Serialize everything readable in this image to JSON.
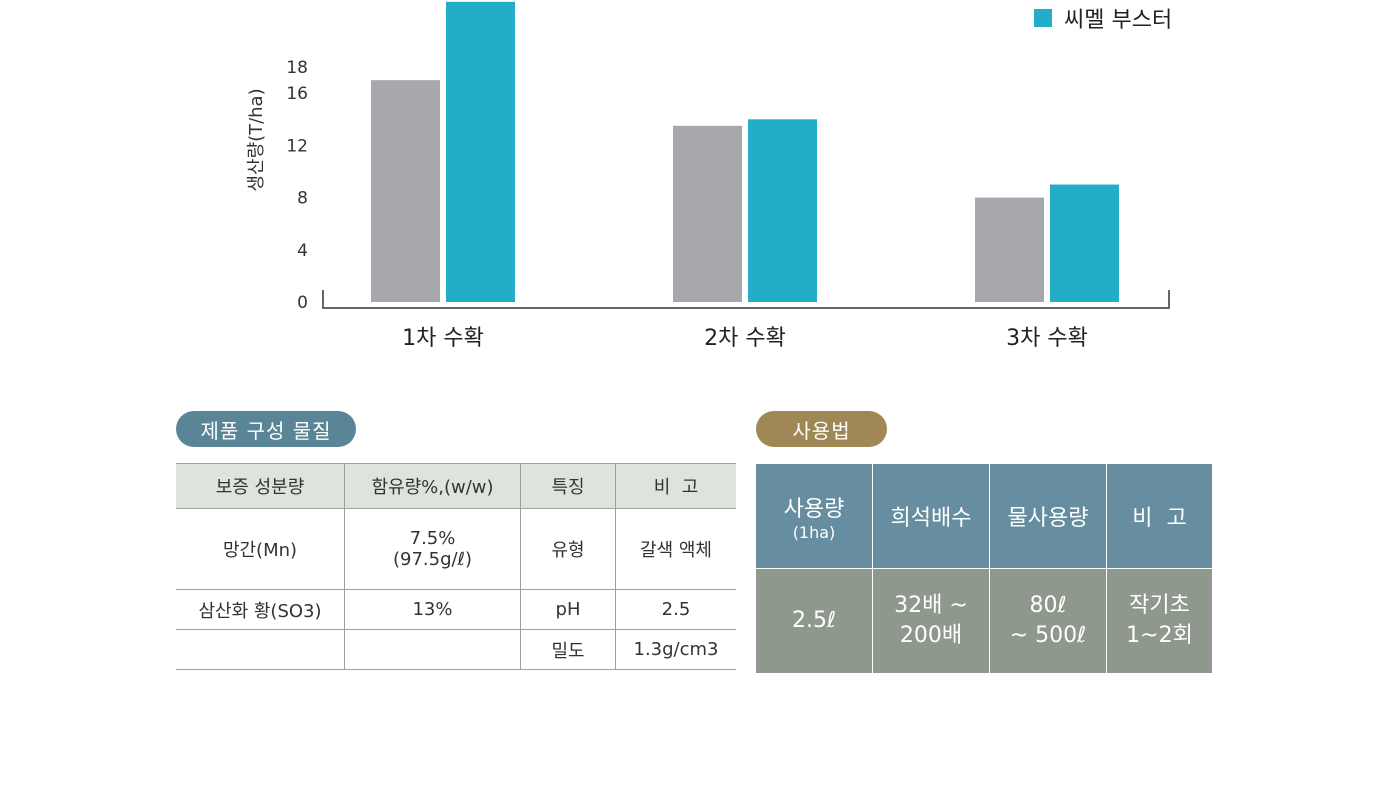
{
  "chart_data": {
    "type": "bar",
    "ylabel": "생산량(T/ha)",
    "yticks": [
      0,
      4,
      8,
      12,
      16,
      18
    ],
    "ylim": [
      0,
      23
    ],
    "categories": [
      "1차 수확",
      "2차 수확",
      "3차 수확"
    ],
    "series": [
      {
        "name": "",
        "color": "#a7a8ac",
        "values": [
          17.0,
          13.5,
          8.0
        ]
      },
      {
        "name": "씨멜 부스터",
        "color": "#24adc6",
        "values": [
          23.0,
          14.0,
          9.0
        ]
      }
    ],
    "legend_position": "top-right",
    "grid": false
  },
  "composition": {
    "title": "제품 구성 물질",
    "headers": [
      "보증 성분량",
      "함유량%,(w/w)",
      "특징",
      "비  고"
    ],
    "rows": {
      "mn": {
        "name": "망간(Mn)",
        "content_line1": "7.5%",
        "content_line2": "(97.5g/ℓ)",
        "feature": "유형",
        "note": "갈색 액체"
      },
      "so3": {
        "name": "삼산화 황(SO3)",
        "content": "13%",
        "feature": "pH",
        "note": "2.5"
      },
      "density": {
        "name": "",
        "content": "",
        "feature": "밀도",
        "note": "1.3g/cm3"
      }
    }
  },
  "usage": {
    "title": "사용법",
    "headers": {
      "amount": "사용량",
      "amount_sub": "(1ha)",
      "dilution": "희석배수",
      "water": "물사용량",
      "note": "비  고"
    },
    "row": {
      "amount": "2.5ℓ",
      "dilution_line1": "32배 ~",
      "dilution_line2": "200배",
      "water_line1": "80ℓ",
      "water_line2": "~ 500ℓ",
      "note_line1": "작기초",
      "note_line2": "1~2회"
    }
  }
}
